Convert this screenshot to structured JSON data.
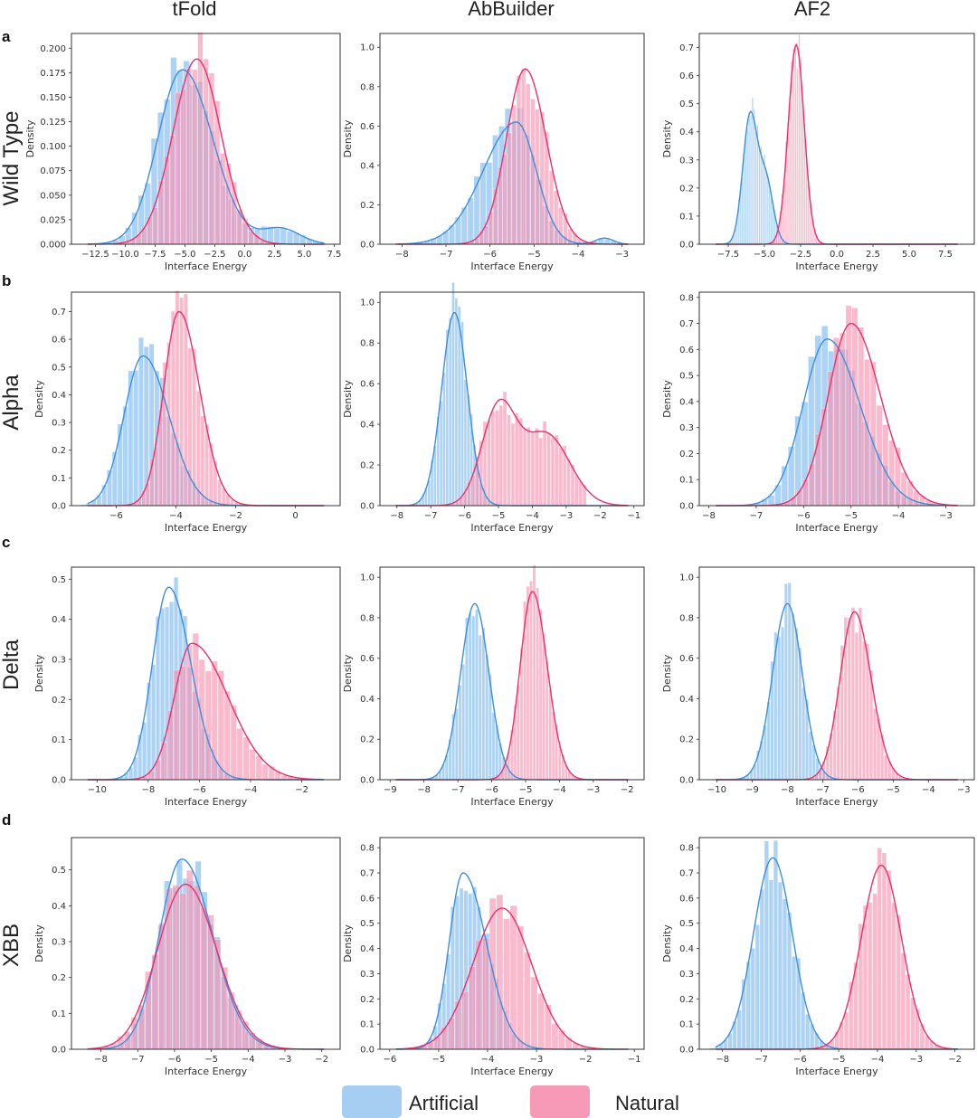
{
  "figure": {
    "columns": [
      "tFold",
      "AbBuilder",
      "AF2"
    ],
    "rows": [
      {
        "letter": "a",
        "title": "Wild Type"
      },
      {
        "letter": "b",
        "title": "Alpha"
      },
      {
        "letter": "c",
        "title": "Delta"
      },
      {
        "letter": "d",
        "title": "XBB"
      }
    ],
    "colors": {
      "artificial": "#3d8fdb",
      "artificial_fill": "#9fcbf2",
      "natural": "#e8306e",
      "natural_fill": "#f78fae",
      "overlap": "#b55a94",
      "frame": "#333333"
    }
  },
  "legend": {
    "artificial": "Artificial",
    "natural": "Natural"
  },
  "chart_data": [
    {
      "type": "histogram+kde",
      "row": "Wild Type",
      "column": "tFold",
      "xlabel": "Interface Energy",
      "ylabel": "Density",
      "xlim": [
        -14.5,
        8
      ],
      "ylim": [
        0,
        0.215
      ],
      "xticks": [
        -12.5,
        -10.0,
        -7.5,
        -5.0,
        -2.5,
        0.0,
        2.5,
        5.0,
        7.5
      ],
      "yticks": [
        0.0,
        0.025,
        0.05,
        0.075,
        0.1,
        0.125,
        0.15,
        0.175,
        0.2
      ],
      "ytick_decimals": 3,
      "xtick_decimals": 1,
      "series": [
        {
          "name": "Artificial",
          "peak_x": -5.2,
          "peak_density": 0.178,
          "sd": 2.3,
          "skew": 0.2,
          "tail": {
            "x": 3.0,
            "w": 0.09,
            "sd": 1.6
          }
        },
        {
          "name": "Natural",
          "peak_x": -4.0,
          "peak_density": 0.189,
          "sd": 2.0,
          "skew": 0.0
        }
      ]
    },
    {
      "type": "histogram+kde",
      "row": "Wild Type",
      "column": "AbBuilder",
      "xlabel": "Interface Energy",
      "ylabel": "Density",
      "xlim": [
        -8.5,
        -2.5
      ],
      "ylim": [
        0,
        1.07
      ],
      "xticks": [
        -8,
        -7,
        -6,
        -5,
        -4,
        -3
      ],
      "yticks": [
        0.0,
        0.2,
        0.4,
        0.6,
        0.8,
        1.0
      ],
      "ytick_decimals": 1,
      "xtick_decimals": 0,
      "series": [
        {
          "name": "Artificial",
          "peak_x": -5.4,
          "peak_density": 0.62,
          "sd": 0.6,
          "skew": -0.5,
          "tail": {
            "x": -3.4,
            "w": 0.05,
            "sd": 0.2
          }
        },
        {
          "name": "Natural",
          "peak_x": -5.2,
          "peak_density": 0.89,
          "sd": 0.45,
          "skew": 0.1
        }
      ]
    },
    {
      "type": "histogram+kde",
      "row": "Wild Type",
      "column": "AF2",
      "xlabel": "Interface Energy",
      "ylabel": "Density",
      "xlim": [
        -9.5,
        9.5
      ],
      "ylim": [
        0,
        0.75
      ],
      "xticks": [
        -7.5,
        -5.0,
        -2.5,
        0.0,
        2.5,
        5.0,
        7.5
      ],
      "yticks": [
        0.0,
        0.1,
        0.2,
        0.3,
        0.4,
        0.5,
        0.6,
        0.7
      ],
      "ytick_decimals": 1,
      "xtick_decimals": 1,
      "series": [
        {
          "name": "Artificial",
          "peak_x": -6.0,
          "peak_density": 0.45,
          "sd": 0.5,
          "skew": 0.0,
          "tail": {
            "x": -4.9,
            "w": 0.5,
            "sd": 0.5
          }
        },
        {
          "name": "Natural",
          "peak_x": -2.8,
          "peak_density": 0.71,
          "sd": 0.55,
          "skew": 0.0
        }
      ]
    },
    {
      "type": "histogram+kde",
      "row": "Alpha",
      "column": "tFold",
      "xlabel": "Interface Energy",
      "ylabel": "Density",
      "xlim": [
        -7.5,
        1.5
      ],
      "ylim": [
        0,
        0.77
      ],
      "xticks": [
        -6,
        -4,
        -2,
        0
      ],
      "yticks": [
        0.0,
        0.1,
        0.2,
        0.3,
        0.4,
        0.5,
        0.6,
        0.7
      ],
      "ytick_decimals": 1,
      "xtick_decimals": 0,
      "series": [
        {
          "name": "Artificial",
          "peak_x": -5.1,
          "peak_density": 0.54,
          "sd": 0.75,
          "skew": 0.3
        },
        {
          "name": "Natural",
          "peak_x": -3.9,
          "peak_density": 0.7,
          "sd": 0.6,
          "skew": 0.3
        }
      ]
    },
    {
      "type": "histogram+kde",
      "row": "Alpha",
      "column": "AbBuilder",
      "xlabel": "Interface Energy",
      "ylabel": "Density",
      "xlim": [
        -8.5,
        -0.7
      ],
      "ylim": [
        0,
        1.05
      ],
      "xticks": [
        -8,
        -7,
        -6,
        -5,
        -4,
        -3,
        -2,
        -1
      ],
      "yticks": [
        0.0,
        0.2,
        0.4,
        0.6,
        0.8,
        1.0
      ],
      "ytick_decimals": 1,
      "xtick_decimals": 0,
      "series": [
        {
          "name": "Artificial",
          "peak_x": -6.3,
          "peak_density": 0.95,
          "sd": 0.38,
          "skew": 0.0
        },
        {
          "name": "Natural",
          "peak_x": -5.0,
          "peak_density": 0.47,
          "sd": 0.5,
          "skew": 0.0,
          "tail": {
            "x": -3.6,
            "w": 0.75,
            "sd": 0.7
          }
        }
      ]
    },
    {
      "type": "histogram+kde",
      "row": "Alpha",
      "column": "AF2",
      "xlabel": "Interface Energy",
      "ylabel": "Density",
      "xlim": [
        -8.2,
        -2.4
      ],
      "ylim": [
        0,
        0.82
      ],
      "xticks": [
        -8,
        -7,
        -6,
        -5,
        -4,
        -3
      ],
      "yticks": [
        0.0,
        0.1,
        0.2,
        0.3,
        0.4,
        0.5,
        0.6,
        0.7,
        0.8
      ],
      "ytick_decimals": 1,
      "xtick_decimals": 0,
      "series": [
        {
          "name": "Artificial",
          "peak_x": -5.5,
          "peak_density": 0.64,
          "sd": 0.6,
          "skew": 0.3
        },
        {
          "name": "Natural",
          "peak_x": -5.0,
          "peak_density": 0.7,
          "sd": 0.55,
          "skew": 0.25
        }
      ]
    },
    {
      "type": "histogram+kde",
      "row": "Delta",
      "column": "tFold",
      "xlabel": "Interface Energy",
      "ylabel": "Density",
      "xlim": [
        -11,
        -0.5
      ],
      "ylim": [
        0,
        0.53
      ],
      "xticks": [
        -10,
        -8,
        -6,
        -4,
        -2
      ],
      "yticks": [
        0.0,
        0.1,
        0.2,
        0.3,
        0.4,
        0.5
      ],
      "ytick_decimals": 1,
      "xtick_decimals": 0,
      "series": [
        {
          "name": "Artificial",
          "peak_x": -7.2,
          "peak_density": 0.48,
          "sd": 0.75,
          "skew": 0.3
        },
        {
          "name": "Natural",
          "peak_x": -6.3,
          "peak_density": 0.34,
          "sd": 1.05,
          "skew": 0.7
        }
      ]
    },
    {
      "type": "histogram+kde",
      "row": "Delta",
      "column": "AbBuilder",
      "xlabel": "Interface Energy",
      "ylabel": "Density",
      "xlim": [
        -9.3,
        -1.5
      ],
      "ylim": [
        0,
        1.05
      ],
      "xticks": [
        -9,
        -8,
        -7,
        -6,
        -5,
        -4,
        -3,
        -2
      ],
      "yticks": [
        0.0,
        0.2,
        0.4,
        0.6,
        0.8,
        1.0
      ],
      "ytick_decimals": 1,
      "xtick_decimals": 0,
      "series": [
        {
          "name": "Artificial",
          "peak_x": -6.5,
          "peak_density": 0.87,
          "sd": 0.42,
          "skew": 0.0
        },
        {
          "name": "Natural",
          "peak_x": -4.8,
          "peak_density": 0.93,
          "sd": 0.4,
          "skew": 0.2
        }
      ]
    },
    {
      "type": "histogram+kde",
      "row": "Delta",
      "column": "AF2",
      "xlabel": "Interface Energy",
      "ylabel": "Density",
      "xlim": [
        -10.5,
        -2.7
      ],
      "ylim": [
        0,
        1.05
      ],
      "xticks": [
        -10,
        -9,
        -8,
        -7,
        -6,
        -5,
        -4,
        -3
      ],
      "yticks": [
        0.0,
        0.2,
        0.4,
        0.6,
        0.8,
        1.0
      ],
      "ytick_decimals": 1,
      "xtick_decimals": 0,
      "series": [
        {
          "name": "Artificial",
          "peak_x": -8.0,
          "peak_density": 0.87,
          "sd": 0.42,
          "skew": 0.0
        },
        {
          "name": "Natural",
          "peak_x": -6.1,
          "peak_density": 0.83,
          "sd": 0.44,
          "skew": 0.15
        }
      ]
    },
    {
      "type": "histogram+kde",
      "row": "XBB",
      "column": "tFold",
      "xlabel": "Interface Energy",
      "ylabel": "Density",
      "xlim": [
        -8.8,
        -1.5
      ],
      "ylim": [
        0,
        0.59
      ],
      "xticks": [
        -8,
        -7,
        -6,
        -5,
        -4,
        -3,
        -2
      ],
      "yticks": [
        0.0,
        0.1,
        0.2,
        0.3,
        0.4,
        0.5
      ],
      "ytick_decimals": 1,
      "xtick_decimals": 0,
      "series": [
        {
          "name": "Artificial",
          "peak_x": -5.8,
          "peak_density": 0.53,
          "sd": 0.72,
          "skew": 0.3
        },
        {
          "name": "Natural",
          "peak_x": -5.7,
          "peak_density": 0.46,
          "sd": 0.8,
          "skew": 0.1
        }
      ]
    },
    {
      "type": "histogram+kde",
      "row": "XBB",
      "column": "AbBuilder",
      "xlabel": "Interface Energy",
      "ylabel": "Density",
      "xlim": [
        -6.2,
        -0.8
      ],
      "ylim": [
        0,
        0.84
      ],
      "xticks": [
        -6,
        -5,
        -4,
        -3,
        -2,
        -1
      ],
      "yticks": [
        0.0,
        0.1,
        0.2,
        0.3,
        0.4,
        0.5,
        0.6,
        0.7,
        0.8
      ],
      "ytick_decimals": 1,
      "xtick_decimals": 0,
      "series": [
        {
          "name": "Artificial",
          "peak_x": -4.5,
          "peak_density": 0.7,
          "sd": 0.38,
          "skew": 0.5
        },
        {
          "name": "Natural",
          "peak_x": -3.7,
          "peak_density": 0.56,
          "sd": 0.6,
          "skew": 0.0
        }
      ]
    },
    {
      "type": "histogram+kde",
      "row": "XBB",
      "column": "AF2",
      "xlabel": "Interface Energy",
      "ylabel": "Density",
      "xlim": [
        -8.6,
        -1.5
      ],
      "ylim": [
        0,
        0.84
      ],
      "xticks": [
        -8,
        -7,
        -6,
        -5,
        -4,
        -3,
        -2
      ],
      "yticks": [
        0.0,
        0.1,
        0.2,
        0.3,
        0.4,
        0.5,
        0.6,
        0.7,
        0.8
      ],
      "ytick_decimals": 1,
      "xtick_decimals": 0,
      "series": [
        {
          "name": "Artificial",
          "peak_x": -6.7,
          "peak_density": 0.76,
          "sd": 0.5,
          "skew": 0.0
        },
        {
          "name": "Natural",
          "peak_x": -3.9,
          "peak_density": 0.73,
          "sd": 0.52,
          "skew": 0.0
        }
      ]
    }
  ]
}
